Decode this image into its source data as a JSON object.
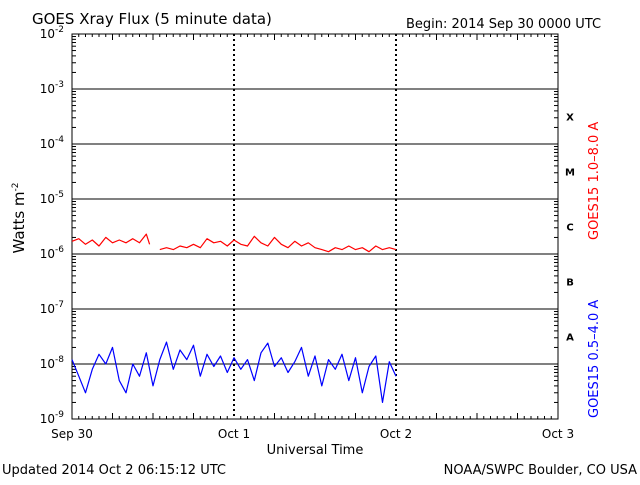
{
  "header": {
    "title": "GOES Xray Flux (5 minute data)",
    "begin": "Begin:  2014 Sep 30 0000 UTC"
  },
  "footer": {
    "updated": "Updated 2014 Oct  2 06:15:12 UTC",
    "source": "NOAA/SWPC Boulder, CO USA"
  },
  "chart_data": {
    "type": "line",
    "title": "GOES Xray Flux (5 minute data)",
    "xlabel": "Universal Time",
    "ylabel": "Watts m",
    "ylabel_exponent": "-2",
    "y_scale": "log",
    "ylim": [
      1e-09,
      0.01
    ],
    "xlim": [
      "2014-09-30T00:00Z",
      "2014-10-03T00:00Z"
    ],
    "x_ticks": [
      "Sep 30",
      "Oct 1",
      "Oct 2",
      "Oct 3"
    ],
    "y_tick_exponents": [
      "-2",
      "-3",
      "-4",
      "-5",
      "-6",
      "-7",
      "-8",
      "-9"
    ],
    "y_tick_base": "10",
    "flare_classes": [
      "X",
      "M",
      "C",
      "B",
      "A"
    ],
    "grid": true,
    "series": [
      {
        "name": "GOES15 1.0–8.0 A",
        "color": "#ff0000",
        "points": [
          [
            "2014-09-30T00:00Z",
            1.7e-06
          ],
          [
            "2014-09-30T01:00Z",
            1.9e-06
          ],
          [
            "2014-09-30T02:00Z",
            1.5e-06
          ],
          [
            "2014-09-30T03:00Z",
            1.8e-06
          ],
          [
            "2014-09-30T04:00Z",
            1.4e-06
          ],
          [
            "2014-09-30T05:00Z",
            2e-06
          ],
          [
            "2014-09-30T06:00Z",
            1.6e-06
          ],
          [
            "2014-09-30T07:00Z",
            1.8e-06
          ],
          [
            "2014-09-30T08:00Z",
            1.6e-06
          ],
          [
            "2014-09-30T09:00Z",
            1.9e-06
          ],
          [
            "2014-09-30T10:00Z",
            1.6e-06
          ],
          [
            "2014-09-30T11:00Z",
            2.3e-06
          ],
          [
            "2014-09-30T11:30Z",
            1.5e-06
          ],
          null,
          [
            "2014-09-30T13:00Z",
            1.2e-06
          ],
          [
            "2014-09-30T14:00Z",
            1.3e-06
          ],
          [
            "2014-09-30T15:00Z",
            1.2e-06
          ],
          [
            "2014-09-30T16:00Z",
            1.4e-06
          ],
          [
            "2014-09-30T17:00Z",
            1.3e-06
          ],
          [
            "2014-09-30T18:00Z",
            1.5e-06
          ],
          [
            "2014-09-30T19:00Z",
            1.3e-06
          ],
          [
            "2014-09-30T20:00Z",
            1.9e-06
          ],
          [
            "2014-09-30T21:00Z",
            1.6e-06
          ],
          [
            "2014-09-30T22:00Z",
            1.7e-06
          ],
          [
            "2014-09-30T23:00Z",
            1.4e-06
          ],
          [
            "2014-10-01T00:00Z",
            1.8e-06
          ],
          [
            "2014-10-01T01:00Z",
            1.5e-06
          ],
          [
            "2014-10-01T02:00Z",
            1.4e-06
          ],
          [
            "2014-10-01T03:00Z",
            2.1e-06
          ],
          [
            "2014-10-01T04:00Z",
            1.6e-06
          ],
          [
            "2014-10-01T05:00Z",
            1.4e-06
          ],
          [
            "2014-10-01T06:00Z",
            2e-06
          ],
          [
            "2014-10-01T07:00Z",
            1.5e-06
          ],
          [
            "2014-10-01T08:00Z",
            1.3e-06
          ],
          [
            "2014-10-01T09:00Z",
            1.7e-06
          ],
          [
            "2014-10-01T10:00Z",
            1.4e-06
          ],
          [
            "2014-10-01T11:00Z",
            1.6e-06
          ],
          [
            "2014-10-01T12:00Z",
            1.3e-06
          ],
          [
            "2014-10-01T13:00Z",
            1.2e-06
          ],
          [
            "2014-10-01T14:00Z",
            1.1e-06
          ],
          [
            "2014-10-01T15:00Z",
            1.3e-06
          ],
          [
            "2014-10-01T16:00Z",
            1.2e-06
          ],
          [
            "2014-10-01T17:00Z",
            1.4e-06
          ],
          [
            "2014-10-01T18:00Z",
            1.2e-06
          ],
          [
            "2014-10-01T19:00Z",
            1.3e-06
          ],
          [
            "2014-10-01T20:00Z",
            1.1e-06
          ],
          [
            "2014-10-01T21:00Z",
            1.4e-06
          ],
          [
            "2014-10-01T22:00Z",
            1.2e-06
          ],
          [
            "2014-10-01T23:00Z",
            1.3e-06
          ],
          [
            "2014-10-02T00:00Z",
            1.2e-06
          ]
        ]
      },
      {
        "name": "GOES15 0.5–4.0 A",
        "color": "#0000ff",
        "points": [
          [
            "2014-09-30T00:00Z",
            1.2e-08
          ],
          [
            "2014-09-30T01:00Z",
            6e-09
          ],
          [
            "2014-09-30T02:00Z",
            3e-09
          ],
          [
            "2014-09-30T03:00Z",
            8e-09
          ],
          [
            "2014-09-30T04:00Z",
            1.5e-08
          ],
          [
            "2014-09-30T05:00Z",
            1e-08
          ],
          [
            "2014-09-30T06:00Z",
            2e-08
          ],
          [
            "2014-09-30T07:00Z",
            5e-09
          ],
          [
            "2014-09-30T08:00Z",
            3e-09
          ],
          [
            "2014-09-30T09:00Z",
            1e-08
          ],
          [
            "2014-09-30T10:00Z",
            6e-09
          ],
          [
            "2014-09-30T11:00Z",
            1.6e-08
          ],
          [
            "2014-09-30T12:00Z",
            4e-09
          ],
          [
            "2014-09-30T13:00Z",
            1.2e-08
          ],
          [
            "2014-09-30T14:00Z",
            2.5e-08
          ],
          [
            "2014-09-30T15:00Z",
            8e-09
          ],
          [
            "2014-09-30T16:00Z",
            1.8e-08
          ],
          [
            "2014-09-30T17:00Z",
            1.2e-08
          ],
          [
            "2014-09-30T18:00Z",
            2.2e-08
          ],
          [
            "2014-09-30T19:00Z",
            6e-09
          ],
          [
            "2014-09-30T20:00Z",
            1.5e-08
          ],
          [
            "2014-09-30T21:00Z",
            9e-09
          ],
          [
            "2014-09-30T22:00Z",
            1.4e-08
          ],
          [
            "2014-09-30T23:00Z",
            7e-09
          ],
          [
            "2014-10-01T00:00Z",
            1.3e-08
          ],
          [
            "2014-10-01T01:00Z",
            8e-09
          ],
          [
            "2014-10-01T02:00Z",
            1.2e-08
          ],
          [
            "2014-10-01T03:00Z",
            5e-09
          ],
          [
            "2014-10-01T04:00Z",
            1.6e-08
          ],
          [
            "2014-10-01T05:00Z",
            2.4e-08
          ],
          [
            "2014-10-01T06:00Z",
            9e-09
          ],
          [
            "2014-10-01T07:00Z",
            1.3e-08
          ],
          [
            "2014-10-01T08:00Z",
            7e-09
          ],
          [
            "2014-10-01T09:00Z",
            1.1e-08
          ],
          [
            "2014-10-01T10:00Z",
            2e-08
          ],
          [
            "2014-10-01T11:00Z",
            6e-09
          ],
          [
            "2014-10-01T12:00Z",
            1.4e-08
          ],
          [
            "2014-10-01T13:00Z",
            4e-09
          ],
          [
            "2014-10-01T14:00Z",
            1.2e-08
          ],
          [
            "2014-10-01T15:00Z",
            8e-09
          ],
          [
            "2014-10-01T16:00Z",
            1.5e-08
          ],
          [
            "2014-10-01T17:00Z",
            5e-09
          ],
          [
            "2014-10-01T18:00Z",
            1.3e-08
          ],
          [
            "2014-10-01T19:00Z",
            3e-09
          ],
          [
            "2014-10-01T20:00Z",
            9e-09
          ],
          [
            "2014-10-01T21:00Z",
            1.4e-08
          ],
          [
            "2014-10-01T22:00Z",
            2e-09
          ],
          [
            "2014-10-01T23:00Z",
            1.1e-08
          ],
          [
            "2014-10-02T00:00Z",
            6e-09
          ]
        ]
      }
    ]
  }
}
